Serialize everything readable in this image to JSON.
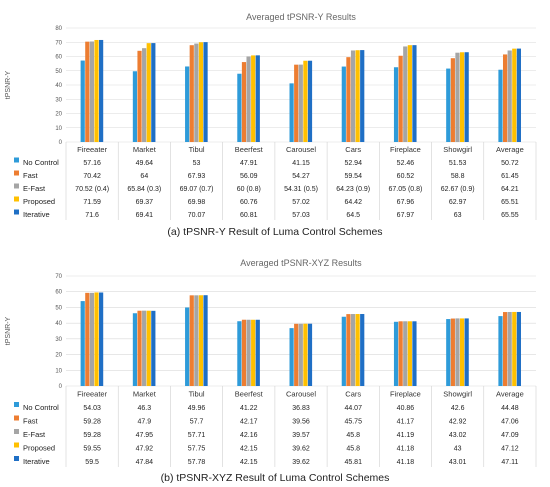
{
  "colors": {
    "No Control": "#2e9bd9",
    "Fast": "#ed7d31",
    "E-Fast": "#a5a5a5",
    "Proposed": "#ffc000",
    "Iterative": "#1f6fc5"
  },
  "chart_data": [
    {
      "type": "bar",
      "title": "Averaged tPSNR-Y Results",
      "ylabel": "tPSNR-Y",
      "ylim": [
        0,
        80
      ],
      "yticks": [
        0,
        10,
        20,
        30,
        40,
        50,
        60,
        70,
        80
      ],
      "grid": true,
      "legend": "data-table",
      "categories": [
        "Fireeater",
        "Market",
        "Tibul",
        "Beerfest",
        "Carousel",
        "Cars",
        "Fireplace",
        "Showgirl",
        "Average"
      ],
      "series": [
        {
          "name": "No Control",
          "values": [
            57.16,
            49.64,
            53,
            47.91,
            41.15,
            52.94,
            52.46,
            51.53,
            50.72
          ],
          "labels": [
            "57.16",
            "49.64",
            "53",
            "47.91",
            "41.15",
            "52.94",
            "52.46",
            "51.53",
            "50.72"
          ]
        },
        {
          "name": "Fast",
          "values": [
            70.42,
            64,
            67.93,
            56.09,
            54.27,
            59.54,
            60.52,
            58.8,
            61.45
          ],
          "labels": [
            "70.42",
            "64",
            "67.93",
            "56.09",
            "54.27",
            "59.54",
            "60.52",
            "58.8",
            "61.45"
          ]
        },
        {
          "name": "E-Fast",
          "values": [
            70.52,
            65.84,
            69.07,
            60,
            54.31,
            64.23,
            67.05,
            62.67,
            64.21
          ],
          "labels": [
            "70.52 (0.4)",
            "65.84 (0.3)",
            "69.07 (0.7)",
            "60 (0.8)",
            "54.31 (0.5)",
            "64.23 (0.9)",
            "67.05 (0.8)",
            "62.67 (0.9)",
            "64.21"
          ]
        },
        {
          "name": "Proposed",
          "values": [
            71.59,
            69.37,
            69.98,
            60.76,
            57.02,
            64.42,
            67.96,
            62.97,
            65.51
          ],
          "labels": [
            "71.59",
            "69.37",
            "69.98",
            "60.76",
            "57.02",
            "64.42",
            "67.96",
            "62.97",
            "65.51"
          ]
        },
        {
          "name": "Iterative",
          "values": [
            71.6,
            69.41,
            70.07,
            60.81,
            57.03,
            64.5,
            67.97,
            63,
            65.55
          ],
          "labels": [
            "71.6",
            "69.41",
            "70.07",
            "60.81",
            "57.03",
            "64.5",
            "67.97",
            "63",
            "65.55"
          ]
        }
      ],
      "caption": "(a) tPSNR-Y Result of Luma Control Schemes"
    },
    {
      "type": "bar",
      "title": "Averaged tPSNR-XYZ Results",
      "ylabel": "tPSNR-Y",
      "ylim": [
        0,
        70
      ],
      "yticks": [
        0,
        10,
        20,
        30,
        40,
        50,
        60,
        70
      ],
      "grid": true,
      "legend": "data-table",
      "categories": [
        "Fireeater",
        "Market",
        "Tibul",
        "Beerfest",
        "Carousel",
        "Cars",
        "Fireplace",
        "Showgirl",
        "Average"
      ],
      "series": [
        {
          "name": "No Control",
          "values": [
            54.03,
            46.3,
            49.96,
            41.22,
            36.83,
            44.07,
            40.86,
            42.6,
            44.48
          ],
          "labels": [
            "54.03",
            "46.3",
            "49.96",
            "41.22",
            "36.83",
            "44.07",
            "40.86",
            "42.6",
            "44.48"
          ]
        },
        {
          "name": "Fast",
          "values": [
            59.28,
            47.9,
            57.7,
            42.17,
            39.56,
            45.75,
            41.17,
            42.92,
            47.06
          ],
          "labels": [
            "59.28",
            "47.9",
            "57.7",
            "42.17",
            "39.56",
            "45.75",
            "41.17",
            "42.92",
            "47.06"
          ]
        },
        {
          "name": "E-Fast",
          "values": [
            59.28,
            47.95,
            57.71,
            42.16,
            39.57,
            45.8,
            41.19,
            43.02,
            47.09
          ],
          "labels": [
            "59.28",
            "47.95",
            "57.71",
            "42.16",
            "39.57",
            "45.8",
            "41.19",
            "43.02",
            "47.09"
          ]
        },
        {
          "name": "Proposed",
          "values": [
            59.55,
            47.92,
            57.75,
            42.15,
            39.62,
            45.8,
            41.18,
            43,
            47.12
          ],
          "labels": [
            "59.55",
            "47.92",
            "57.75",
            "42.15",
            "39.62",
            "45.8",
            "41.18",
            "43",
            "47.12"
          ]
        },
        {
          "name": "Iterative",
          "values": [
            59.5,
            47.84,
            57.78,
            42.15,
            39.62,
            45.81,
            41.18,
            43.01,
            47.11
          ],
          "labels": [
            "59.5",
            "47.84",
            "57.78",
            "42.15",
            "39.62",
            "45.81",
            "41.18",
            "43.01",
            "47.11"
          ]
        }
      ],
      "caption": "(b) tPSNR-XYZ Result of Luma Control Schemes"
    }
  ]
}
